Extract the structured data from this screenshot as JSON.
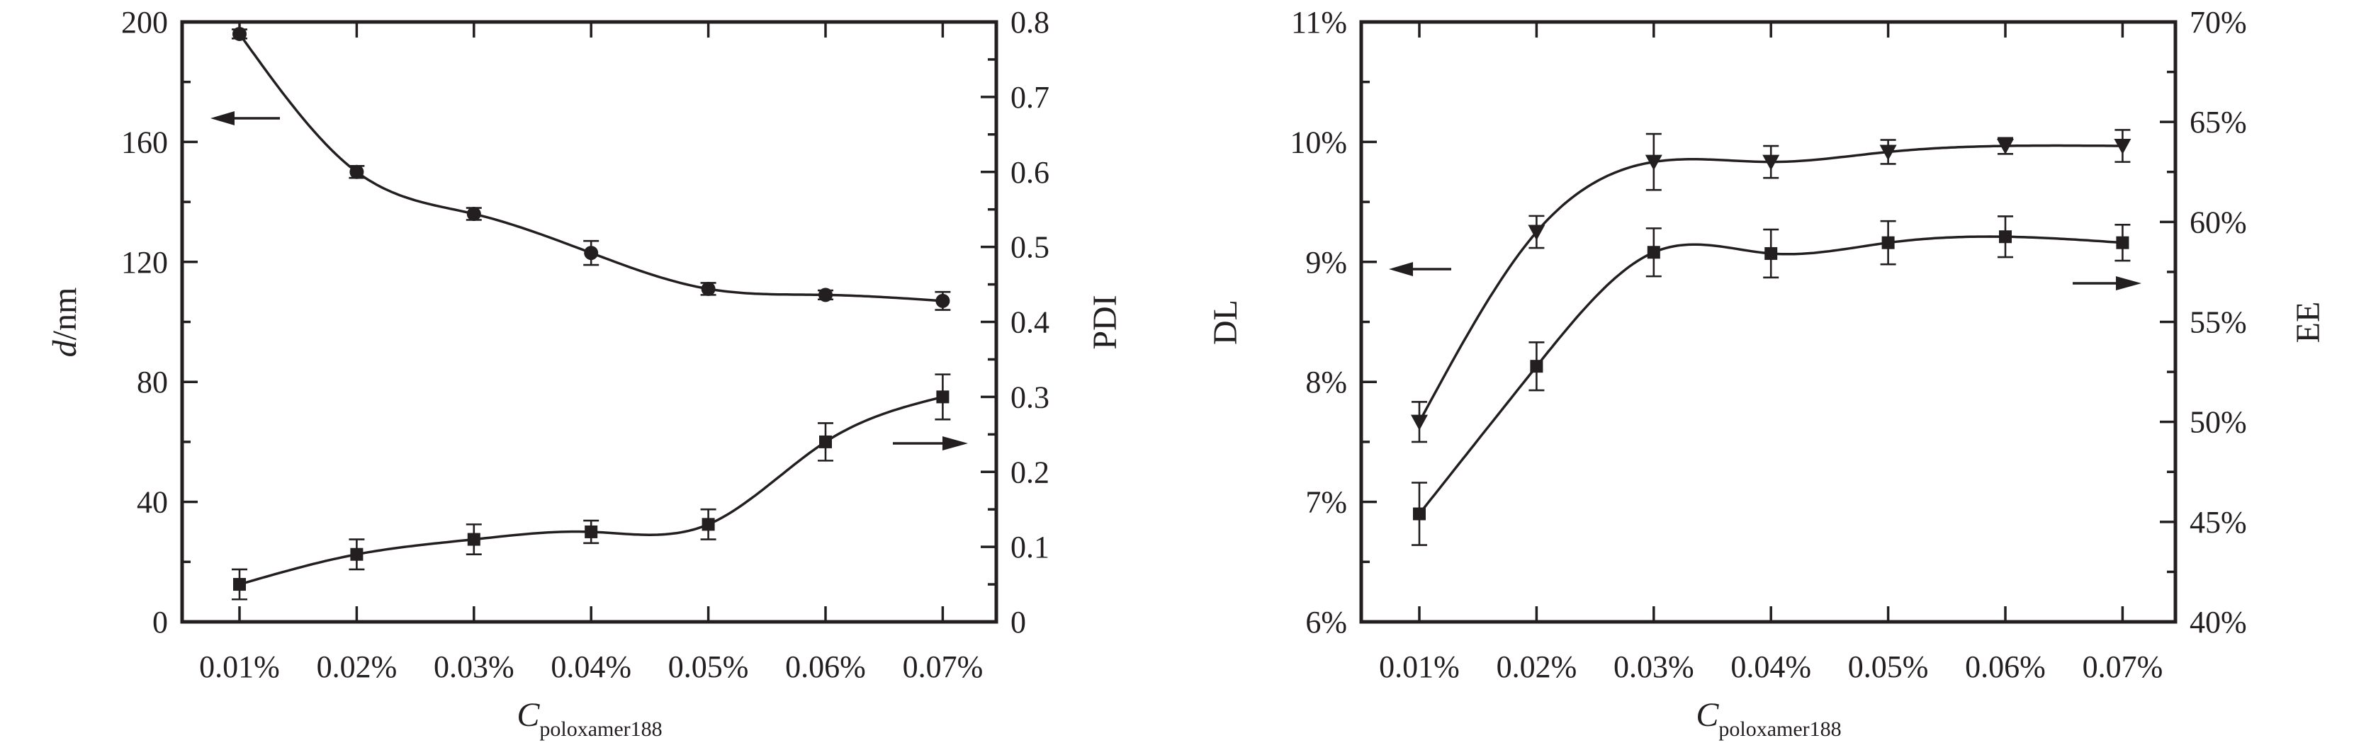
{
  "chart_data": [
    {
      "type": "line",
      "categories": [
        "0.01%",
        "0.02%",
        "0.03%",
        "0.04%",
        "0.05%",
        "0.06%",
        "0.07%"
      ],
      "xlabel_main": "C",
      "xlabel_sub": "poloxamer188",
      "ylabel_left_italic": "d",
      "ylabel_left_rest": "/nm",
      "ylabel_right": "PDI",
      "ylim_left": [
        0,
        200
      ],
      "yticks_left": [
        "0",
        "40",
        "80",
        "120",
        "160",
        "200"
      ],
      "ylim_right": [
        0,
        0.8
      ],
      "yticks_right": [
        "0",
        "0.1",
        "0.2",
        "0.3",
        "0.4",
        "0.5",
        "0.6",
        "0.7",
        "0.8"
      ],
      "series": [
        {
          "axis": "left",
          "marker": "circle",
          "values": [
            196,
            150,
            136,
            123,
            111,
            109,
            107
          ],
          "errors": [
            1.5,
            2,
            2,
            4,
            2,
            1.5,
            3
          ]
        },
        {
          "axis": "right",
          "marker": "square",
          "values": [
            0.05,
            0.09,
            0.11,
            0.12,
            0.13,
            0.24,
            0.3
          ],
          "errors": [
            0.02,
            0.02,
            0.02,
            0.015,
            0.02,
            0.025,
            0.03
          ]
        }
      ]
    },
    {
      "type": "line",
      "categories": [
        "0.01%",
        "0.02%",
        "0.03%",
        "0.04%",
        "0.05%",
        "0.06%",
        "0.07%"
      ],
      "xlabel_main": "C",
      "xlabel_sub": "poloxamer188",
      "ylabel_left": "DL",
      "ylabel_right": "EE",
      "ylim_left": [
        6,
        11
      ],
      "yticks_left": [
        "6%",
        "7%",
        "8%",
        "9%",
        "10%",
        "11%"
      ],
      "ylim_right": [
        40,
        70
      ],
      "yticks_right": [
        "40%",
        "45%",
        "50%",
        "55%",
        "60%",
        "65%",
        "70%"
      ],
      "series": [
        {
          "axis": "left",
          "marker": "square",
          "values": [
            6.9,
            8.13,
            9.08,
            9.07,
            9.16,
            9.21,
            9.16
          ],
          "errors": [
            0.26,
            0.2,
            0.2,
            0.2,
            0.18,
            0.17,
            0.15
          ]
        },
        {
          "axis": "right",
          "marker": "triangle-down",
          "values": [
            50,
            59.5,
            63,
            63,
            63.5,
            63.8,
            63.8
          ],
          "errors": [
            1.0,
            0.8,
            1.4,
            0.8,
            0.6,
            0.4,
            0.8
          ]
        }
      ]
    }
  ]
}
